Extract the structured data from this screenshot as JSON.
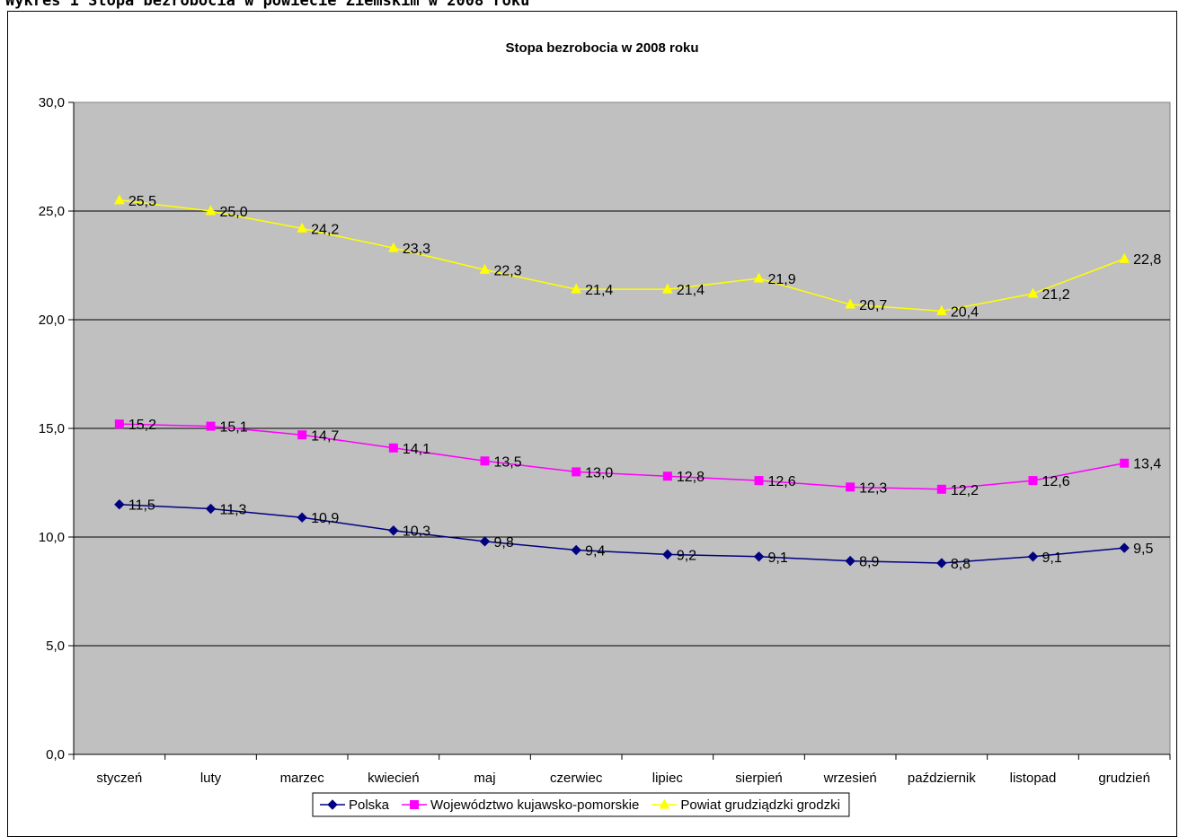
{
  "page": {
    "caption": "Wykres 1 Stopa bezrobocia w powiecie Ziemskim w 2008 roku"
  },
  "chart_data": {
    "type": "line",
    "title": "Stopa bezrobocia w 2008 roku",
    "xlabel": "",
    "ylabel": "",
    "ylim": [
      0,
      30
    ],
    "yticks": [
      "0,0",
      "5,0",
      "10,0",
      "15,0",
      "20,0",
      "25,0",
      "30,0"
    ],
    "grid": true,
    "legend_position": "bottom",
    "plot_background": "#c0c0c0",
    "categories": [
      "styczeń",
      "luty",
      "marzec",
      "kwiecień",
      "maj",
      "czerwiec",
      "lipiec",
      "sierpień",
      "wrzesień",
      "październik",
      "listopad",
      "grudzień"
    ],
    "series": [
      {
        "name": "Polska",
        "color": "#000080",
        "marker": "diamond",
        "values": [
          11.5,
          11.3,
          10.9,
          10.3,
          9.8,
          9.4,
          9.2,
          9.1,
          8.9,
          8.8,
          9.1,
          9.5
        ],
        "labels": [
          "11,5",
          "11,3",
          "10,9",
          "10,3",
          "9,8",
          "9,4",
          "9,2",
          "9,1",
          "8,9",
          "8,8",
          "9,1",
          "9,5"
        ]
      },
      {
        "name": "Województwo kujawsko-pomorskie",
        "color": "#ff00ff",
        "marker": "square",
        "values": [
          15.2,
          15.1,
          14.7,
          14.1,
          13.5,
          13.0,
          12.8,
          12.6,
          12.3,
          12.2,
          12.6,
          13.4
        ],
        "labels": [
          "15,2",
          "15,1",
          "14,7",
          "14,1",
          "13,5",
          "13,0",
          "12,8",
          "12,6",
          "12,3",
          "12,2",
          "12,6",
          "13,4"
        ]
      },
      {
        "name": "Powiat grudziądzki grodzki",
        "color": "#ffff00",
        "marker": "triangle",
        "values": [
          25.5,
          25.0,
          24.2,
          23.3,
          22.3,
          21.4,
          21.4,
          21.9,
          20.7,
          20.4,
          21.2,
          22.8
        ],
        "labels": [
          "25,5",
          "25,0",
          "24,2",
          "23,3",
          "22,3",
          "21,4",
          "21,4",
          "21,9",
          "20,7",
          "20,4",
          "21,2",
          "22,8"
        ]
      }
    ]
  }
}
